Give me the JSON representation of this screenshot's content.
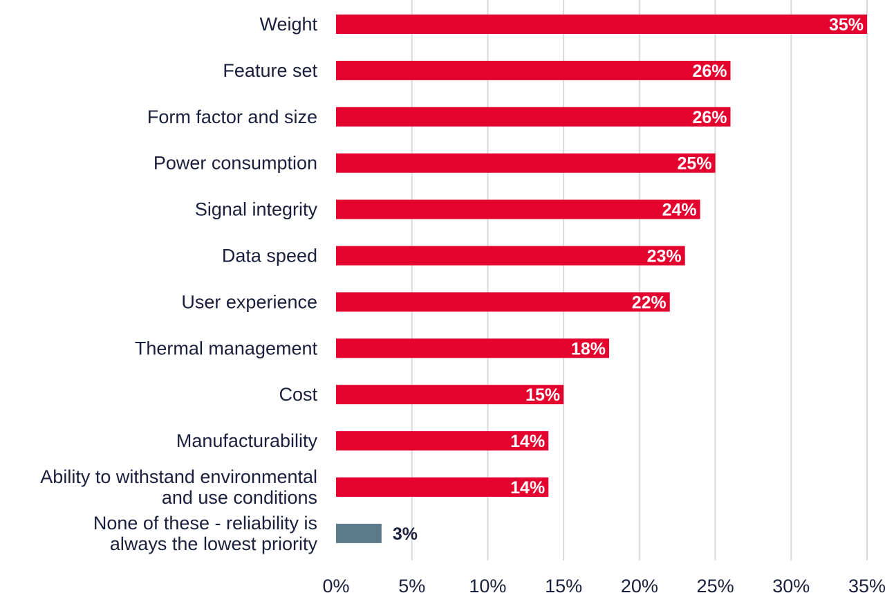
{
  "chart_data": {
    "type": "bar",
    "orientation": "horizontal",
    "categories": [
      "Weight",
      "Feature set",
      "Form factor and size",
      "Power consumption",
      "Signal integrity",
      "Data speed",
      "User experience",
      "Thermal management",
      "Cost",
      "Manufacturability",
      "Ability to withstand environmental and use conditions",
      "None of these - reliability is always the lowest priority"
    ],
    "category_lines": [
      [
        "Weight"
      ],
      [
        "Feature set"
      ],
      [
        "Form factor and size"
      ],
      [
        "Power consumption"
      ],
      [
        "Signal integrity"
      ],
      [
        "Data speed"
      ],
      [
        "User experience"
      ],
      [
        "Thermal management"
      ],
      [
        "Cost"
      ],
      [
        "Manufacturability"
      ],
      [
        "Ability to withstand environmental",
        "and use conditions"
      ],
      [
        "None of these - reliability is",
        "always the lowest priority"
      ]
    ],
    "values": [
      35,
      26,
      26,
      25,
      24,
      23,
      22,
      18,
      15,
      14,
      14,
      3
    ],
    "value_labels": [
      "35%",
      "26%",
      "26%",
      "25%",
      "24%",
      "23%",
      "22%",
      "18%",
      "15%",
      "14%",
      "14%",
      "3%"
    ],
    "bar_colors": [
      "#e4032e",
      "#e4032e",
      "#e4032e",
      "#e4032e",
      "#e4032e",
      "#e4032e",
      "#e4032e",
      "#e4032e",
      "#e4032e",
      "#e4032e",
      "#e4032e",
      "#5c7a8c"
    ],
    "xlim": [
      0,
      35
    ],
    "x_ticks": [
      0,
      5,
      10,
      15,
      20,
      25,
      30,
      35
    ],
    "x_tick_labels": [
      "0%",
      "5%",
      "10%",
      "15%",
      "20%",
      "25%",
      "30%",
      "35%"
    ],
    "grid": "vertical",
    "legend": "none",
    "title": "",
    "xlabel": "",
    "ylabel": ""
  }
}
